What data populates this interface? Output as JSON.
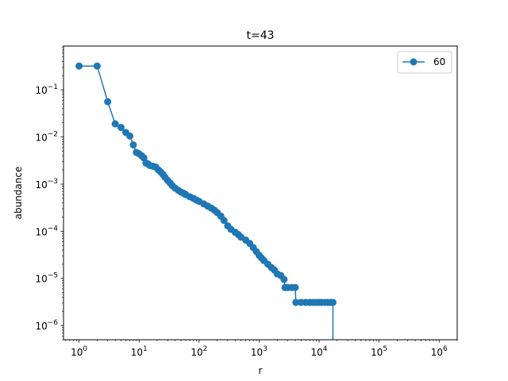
{
  "chart_data": {
    "type": "line",
    "title": "t=43",
    "xlabel": "r",
    "ylabel": "abundance",
    "xscale": "log",
    "yscale": "log",
    "xlim": [
      0.55,
      2000000
    ],
    "ylim": [
      5e-07,
      0.85
    ],
    "grid": false,
    "legend_position": "top-right",
    "x_ticks": [
      {
        "value": 1,
        "base": "10",
        "exp": "0"
      },
      {
        "value": 10,
        "base": "10",
        "exp": "1"
      },
      {
        "value": 100,
        "base": "10",
        "exp": "2"
      },
      {
        "value": 1000,
        "base": "10",
        "exp": "3"
      },
      {
        "value": 10000,
        "base": "10",
        "exp": "4"
      },
      {
        "value": 100000,
        "base": "10",
        "exp": "5"
      },
      {
        "value": 1000000,
        "base": "10",
        "exp": "6"
      }
    ],
    "y_ticks": [
      {
        "value": 1e-06,
        "base": "10",
        "exp": "−6"
      },
      {
        "value": 1e-05,
        "base": "10",
        "exp": "−5"
      },
      {
        "value": 0.0001,
        "base": "10",
        "exp": "−4"
      },
      {
        "value": 0.001,
        "base": "10",
        "exp": "−3"
      },
      {
        "value": 0.01,
        "base": "10",
        "exp": "−2"
      },
      {
        "value": 0.1,
        "base": "10",
        "exp": "−1"
      }
    ],
    "series": [
      {
        "name": "60",
        "color": "#1f77b4",
        "marker": "circle",
        "points": [
          [
            1,
            0.32
          ],
          [
            2,
            0.32
          ],
          [
            3,
            0.056
          ],
          [
            4,
            0.019
          ],
          [
            5,
            0.016
          ],
          [
            6,
            0.0125
          ],
          [
            7,
            0.0105
          ],
          [
            8,
            0.0068
          ],
          [
            9,
            0.0047
          ],
          [
            10,
            0.0044
          ],
          [
            11,
            0.004
          ],
          [
            12,
            0.0036
          ],
          [
            13,
            0.0028
          ],
          [
            14,
            0.0027
          ],
          [
            15,
            0.0025
          ],
          [
            17,
            0.0024
          ],
          [
            19,
            0.0023
          ],
          [
            21,
            0.002
          ],
          [
            23,
            0.0018
          ],
          [
            25,
            0.0016
          ],
          [
            27,
            0.0014
          ],
          [
            30,
            0.0012
          ],
          [
            33,
            0.00105
          ],
          [
            36,
            0.00092
          ],
          [
            40,
            0.00082
          ],
          [
            45,
            0.00074
          ],
          [
            50,
            0.00068
          ],
          [
            55,
            0.00064
          ],
          [
            60,
            0.0006
          ],
          [
            70,
            0.00054
          ],
          [
            80,
            0.0005
          ],
          [
            90,
            0.00046
          ],
          [
            100,
            0.00043
          ],
          [
            120,
            0.00038
          ],
          [
            140,
            0.00034
          ],
          [
            160,
            0.00031
          ],
          [
            180,
            0.00028
          ],
          [
            200,
            0.00025
          ],
          [
            230,
            0.00021
          ],
          [
            260,
            0.00017
          ],
          [
            300,
            0.00013
          ],
          [
            340,
            0.00011
          ],
          [
            400,
            9.5e-05
          ],
          [
            450,
            8.5e-05
          ],
          [
            500,
            7.5e-05
          ],
          [
            600,
            6.5e-05
          ],
          [
            700,
            5.5e-05
          ],
          [
            800,
            4.5e-05
          ],
          [
            900,
            3.7e-05
          ],
          [
            1000,
            3.1e-05
          ],
          [
            1100,
            2.7e-05
          ],
          [
            1200,
            2.4e-05
          ],
          [
            1400,
            2e-05
          ],
          [
            1600,
            1.7e-05
          ],
          [
            1800,
            1.5e-05
          ],
          [
            2000,
            1.25e-05
          ],
          [
            2300,
            1.15e-05
          ],
          [
            2600,
            9.5e-06
          ],
          [
            2700,
            6.4e-06
          ],
          [
            3000,
            6.4e-06
          ],
          [
            3500,
            6.4e-06
          ],
          [
            4000,
            6.4e-06
          ],
          [
            4100,
            3.1e-06
          ],
          [
            5000,
            3.1e-06
          ],
          [
            6000,
            3.1e-06
          ],
          [
            7000,
            3.1e-06
          ],
          [
            8000,
            3.1e-06
          ],
          [
            9000,
            3.1e-06
          ],
          [
            10000,
            3.1e-06
          ],
          [
            11000,
            3.1e-06
          ],
          [
            12500,
            3.1e-06
          ],
          [
            14000,
            3.1e-06
          ],
          [
            15500,
            3.1e-06
          ],
          [
            17000,
            3.1e-06
          ],
          [
            17000,
            3e-07
          ]
        ]
      }
    ]
  }
}
